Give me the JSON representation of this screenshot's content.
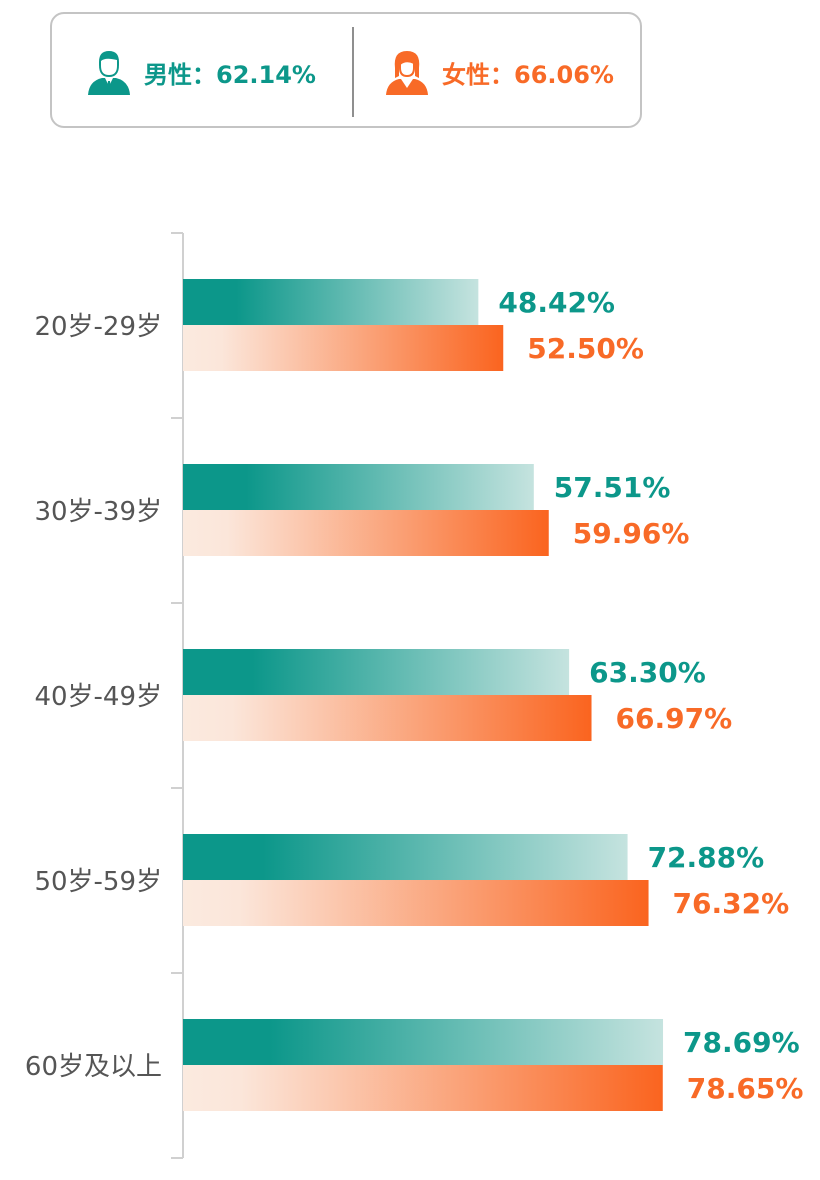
{
  "colors": {
    "male": "#0c978a",
    "female": "#f86a27"
  },
  "legend": {
    "male": {
      "label": "男性：62.14%",
      "icon": "male-user-icon"
    },
    "female": {
      "label": "女性：66.06%",
      "icon": "female-user-icon"
    }
  },
  "chart_data": {
    "type": "bar",
    "orientation": "horizontal",
    "title": "",
    "xlabel": "",
    "ylabel": "",
    "xlim": [
      0,
      100
    ],
    "grid": false,
    "categories": [
      "20岁-29岁",
      "30岁-39岁",
      "40岁-49岁",
      "50岁-59岁",
      "60岁及以上"
    ],
    "series": [
      {
        "name": "男性",
        "values": [
          48.42,
          57.51,
          63.3,
          72.88,
          78.69
        ],
        "labels": [
          "48.42%",
          "57.51%",
          "63.30%",
          "72.88%",
          "78.69%"
        ]
      },
      {
        "name": "女性",
        "values": [
          52.5,
          59.96,
          66.97,
          76.32,
          78.65
        ],
        "labels": [
          "52.50%",
          "59.96%",
          "66.97%",
          "76.32%",
          "78.65%"
        ]
      }
    ]
  }
}
